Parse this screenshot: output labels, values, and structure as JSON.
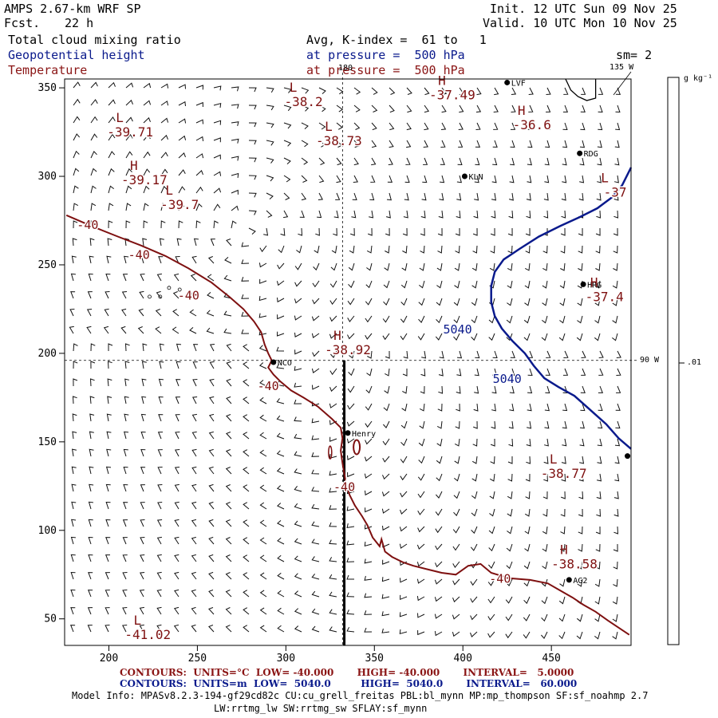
{
  "header": {
    "model": "AMPS 2.67-km WRF SP",
    "fcst_label": "Fcst.",
    "fcst_value": "22 h",
    "init": "Init. 12 UTC Sun 09 Nov 25",
    "valid": "Valid. 10 UTC Mon 10 Nov 25",
    "field1": "Total cloud mixing ratio",
    "field2": "Geopotential height",
    "field3": "Temperature",
    "avg_line": "Avg, K-index =  61 to   1",
    "pressure1": "at pressure =  500 hPa",
    "pressure2": "at pressure =  500 hPa",
    "sm": "sm= 2"
  },
  "colorbar": {
    "unit": "g kg⁻¹",
    "tick": ".01",
    "value": 0.01
  },
  "footer": {
    "red_line": "CONTOURS:  UNITS=°C  LOW= -40.000       HIGH= -40.000       INTERVAL=   5.0000",
    "blue_line": "CONTOURS:  UNITS=m  LOW=  5040.0         HIGH=  5040.0       INTERVAL=   60.000",
    "model_info": "Model Info: MPASv8.2.3-194-gf29cd82c CU:cu_grell_freitas PBL:bl_mynn MP:mp_thompson SF:sf_noahmp 2.7",
    "model_info2": "LW:rrtmg_lw SW:rrtmg_sw SFLAY:sf_mynn"
  },
  "chart_data": {
    "type": "contour",
    "xlim": [
      175,
      495
    ],
    "ylim": [
      35,
      355
    ],
    "x_ticks": [
      200,
      250,
      300,
      350,
      400,
      450
    ],
    "y_ticks": [
      50,
      100,
      150,
      200,
      250,
      300,
      350
    ],
    "grid_lines": {
      "meridian_180_label": "180",
      "meridian_180_x": 332,
      "meridian_135_label": "135 W",
      "meridian_90_label": "90 W",
      "meridian_90_y": 196
    },
    "cross_section": {
      "x": 333,
      "y_from": 196,
      "y_to": 35
    },
    "stations": [
      {
        "name": "LVF",
        "x": 425,
        "y": 353
      },
      {
        "name": "RDG",
        "x": 466,
        "y": 313
      },
      {
        "name": "KLN",
        "x": 401,
        "y": 300
      },
      {
        "name": "HRG",
        "x": 468,
        "y": 239
      },
      {
        "name": "NCO",
        "x": 293,
        "y": 195
      },
      {
        "name": "Henry",
        "x": 335,
        "y": 155
      },
      {
        "name": "AG2",
        "x": 460,
        "y": 72
      },
      {
        "name": "",
        "x": 493,
        "y": 142
      }
    ],
    "temperature_contours": [
      {
        "level": -40,
        "label_positions": [
          {
            "text": "-40",
            "x": 188,
            "y": 273
          },
          {
            "text": "-40",
            "x": 217,
            "y": 256
          },
          {
            "text": "-40",
            "x": 245,
            "y": 233
          },
          {
            "text": "-40",
            "x": 290,
            "y": 182
          },
          {
            "text": "-40",
            "x": 333,
            "y": 125
          },
          {
            "text": "-40",
            "x": 421,
            "y": 73
          }
        ]
      }
    ],
    "height_contours": [
      {
        "level": 5040,
        "label_positions": [
          {
            "text": "5040",
            "x": 397,
            "y": 214
          },
          {
            "text": "5040",
            "x": 425,
            "y": 186
          }
        ]
      }
    ],
    "temperature_extrema": [
      {
        "type": "L",
        "value": "-38.2",
        "x": 310,
        "y": 345
      },
      {
        "type": "L",
        "value": "-39.71",
        "x": 212,
        "y": 328
      },
      {
        "type": "H",
        "value": "-37.49",
        "x": 394,
        "y": 349
      },
      {
        "type": "H",
        "value": "-36.6",
        "x": 439,
        "y": 332
      },
      {
        "type": "L",
        "value": "-38.73",
        "x": 330,
        "y": 323
      },
      {
        "type": "H",
        "value": "-39.17",
        "x": 220,
        "y": 301
      },
      {
        "type": "L",
        "value": "-39.7",
        "x": 240,
        "y": 287
      },
      {
        "type": "L",
        "value": "-37",
        "x": 486,
        "y": 294
      },
      {
        "type": "H",
        "value": "-37.4",
        "x": 480,
        "y": 235
      },
      {
        "type": "H",
        "value": "-38.92",
        "x": 335,
        "y": 205
      },
      {
        "type": "L",
        "value": "-38.77",
        "x": 457,
        "y": 135
      },
      {
        "type": "H",
        "value": "-38.58",
        "x": 463,
        "y": 84
      },
      {
        "type": "L",
        "value": "-41.02",
        "x": 222,
        "y": 44
      }
    ]
  }
}
